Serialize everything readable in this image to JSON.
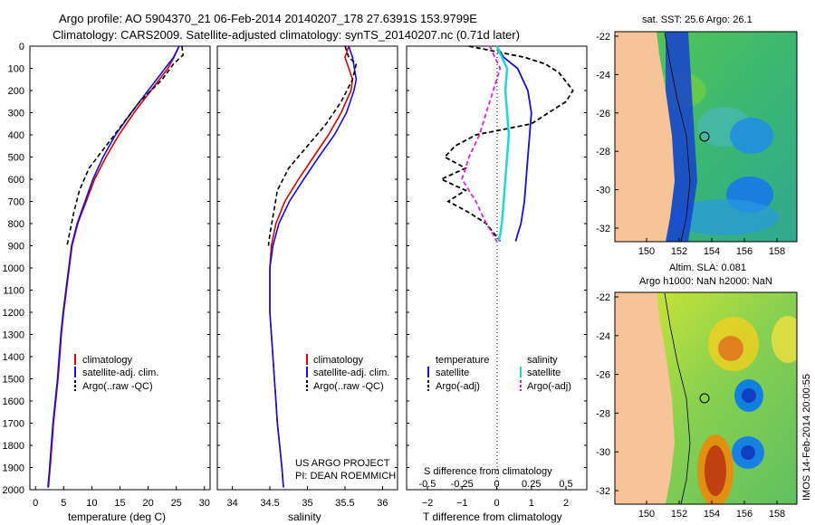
{
  "header": {
    "title_line1": "Argo profile: AO 5904370_21 06-Feb-2014 20140207_178 27.6391S 153.9799E",
    "title_line2": "Climatology: CARS2009. Satellite-adjusted climatology: synTS_20140207.nc (0.71d later)"
  },
  "credits": {
    "line1": "US ARGO PROJECT",
    "line2": "PI: DEAN ROEMMICH"
  },
  "footer_stamp": "IMOS 14-Feb-2014 20:00:55",
  "colors": {
    "climatology": "#e00000",
    "satellite": "#1010e0",
    "argo": "#000000",
    "sat_salinity": "#20d8d8",
    "argo_adj_salinity": "#e020e0",
    "land": "#f7c49a"
  },
  "chart_data": [
    {
      "id": "temperature",
      "type": "line",
      "xlabel": "temperature (deg C)",
      "xlim": [
        -1,
        31
      ],
      "xticks": [
        0,
        5,
        10,
        15,
        20,
        25,
        30
      ],
      "ylim": [
        2000,
        0
      ],
      "yticks": [
        0,
        100,
        200,
        300,
        400,
        500,
        600,
        700,
        800,
        900,
        1000,
        1100,
        1200,
        1300,
        1400,
        1500,
        1600,
        1700,
        1800,
        1900,
        2000
      ],
      "legend": [
        "climatology",
        "satellite-adj. clim.",
        "Argo(..raw -QC)"
      ],
      "series": [
        {
          "name": "climatology",
          "x": [
            25.5,
            24.6,
            23.5,
            20.5,
            17.5,
            14.8,
            12.5,
            10.5,
            9.0,
            7.5,
            6.5,
            6.0,
            5.5,
            5.0,
            4.6,
            4.3,
            4.0,
            3.6,
            3.2,
            2.9,
            2.6,
            2.3
          ],
          "y": [
            0,
            50,
            100,
            200,
            300,
            400,
            500,
            600,
            700,
            800,
            900,
            1000,
            1100,
            1200,
            1300,
            1400,
            1500,
            1600,
            1700,
            1800,
            1900,
            1990
          ]
        },
        {
          "name": "satellite-adj. clim.",
          "x": [
            25.5,
            24.5,
            23.0,
            20.0,
            17.0,
            14.2,
            12.0,
            10.2,
            8.8,
            7.4,
            6.4,
            5.9,
            5.4,
            4.9,
            4.5,
            4.2,
            3.9,
            3.5,
            3.1,
            2.8,
            2.5,
            2.2
          ],
          "y": [
            0,
            50,
            100,
            200,
            300,
            400,
            500,
            600,
            700,
            800,
            900,
            1000,
            1100,
            1200,
            1300,
            1400,
            1500,
            1600,
            1700,
            1800,
            1900,
            1990
          ]
        },
        {
          "name": "Argo(..raw -QC)",
          "x": [
            26.0,
            26.2,
            24.5,
            22.5,
            18.5,
            15.5,
            12.5,
            9.5,
            7.8,
            6.8,
            6.0,
            5.6
          ],
          "y": [
            0,
            40,
            80,
            150,
            250,
            350,
            450,
            550,
            650,
            750,
            850,
            900
          ]
        }
      ]
    },
    {
      "id": "salinity",
      "type": "line",
      "xlabel": "salinity",
      "xlim": [
        33.8,
        36.2
      ],
      "xticks": [
        34,
        34.5,
        35,
        35.5,
        36
      ],
      "ylim": [
        2000,
        0
      ],
      "legend": [
        "climatology",
        "satellite-adj. clim.",
        "Argo(..raw -QC)"
      ],
      "series": [
        {
          "name": "climatology",
          "x": [
            35.55,
            35.5,
            35.6,
            35.58,
            35.45,
            35.28,
            35.08,
            34.88,
            34.7,
            34.58,
            34.52,
            34.5,
            34.5,
            34.52,
            34.54,
            34.56,
            34.58,
            34.6,
            34.63,
            34.66,
            34.68
          ],
          "y": [
            0,
            50,
            150,
            200,
            300,
            400,
            500,
            600,
            700,
            800,
            900,
            1000,
            1200,
            1300,
            1400,
            1500,
            1600,
            1700,
            1800,
            1900,
            1990
          ]
        },
        {
          "name": "satellite-adj. clim.",
          "x": [
            35.55,
            35.6,
            35.65,
            35.62,
            35.52,
            35.36,
            35.15,
            34.95,
            34.76,
            34.62,
            34.54,
            34.5,
            34.5,
            34.52,
            34.54,
            34.56,
            34.58,
            34.6,
            34.63,
            34.66,
            34.68
          ],
          "y": [
            0,
            50,
            150,
            200,
            300,
            400,
            500,
            600,
            700,
            800,
            900,
            1000,
            1200,
            1300,
            1400,
            1500,
            1600,
            1700,
            1800,
            1900,
            1990
          ]
        },
        {
          "name": "Argo(..raw -QC)",
          "x": [
            35.5,
            35.55,
            35.65,
            35.6,
            35.45,
            35.25,
            35.0,
            34.75,
            34.6,
            34.55,
            34.5,
            34.48
          ],
          "y": [
            0,
            50,
            80,
            150,
            250,
            350,
            450,
            550,
            650,
            750,
            850,
            900
          ]
        }
      ]
    },
    {
      "id": "difference",
      "type": "line",
      "xlabel_bottom": "T difference from climatology",
      "xticks_bottom": [
        -2,
        -1,
        0,
        1,
        2
      ],
      "xlabel_top": "S difference from climatology",
      "xticks_top": [
        "-0.5",
        "-0.25",
        "0",
        "0.25",
        "0.5"
      ],
      "xlim": [
        -2.6,
        2.6
      ],
      "ylim": [
        2000,
        0
      ],
      "legend_titles": [
        "temperature",
        "salinity"
      ],
      "legend": [
        "satellite",
        "Argo(-adj)",
        "satellite",
        "Argo(-adj)"
      ],
      "series": [
        {
          "name": "temperature satellite",
          "x": [
            0,
            0.2,
            0.6,
            0.9,
            1.0,
            0.95,
            0.9,
            0.85,
            0.8,
            0.7,
            0.6,
            0.55
          ],
          "y": [
            0,
            50,
            100,
            200,
            300,
            400,
            500,
            600,
            700,
            800,
            850,
            880
          ]
        },
        {
          "name": "temperature Argo(-adj)",
          "x": [
            -0.8,
            0.8,
            1.4,
            1.8,
            2.2,
            2.0,
            1.5,
            1.0,
            -0.6,
            -1.2,
            -1.5,
            -0.9,
            -1.6,
            -0.9,
            -1.4,
            -0.8,
            -0.3,
            0.1
          ],
          "y": [
            0,
            50,
            80,
            120,
            200,
            250,
            300,
            350,
            400,
            450,
            500,
            550,
            600,
            650,
            700,
            750,
            800,
            880
          ]
        },
        {
          "name": "salinity satellite",
          "x": [
            0.0,
            0.15,
            0.3,
            0.25,
            0.3,
            0.35,
            0.3,
            0.25,
            0.2,
            0.15,
            0.1,
            0.05
          ],
          "y": [
            0,
            50,
            100,
            200,
            300,
            400,
            500,
            600,
            700,
            800,
            850,
            880
          ]
        },
        {
          "name": "salinity Argo(-adj)",
          "x": [
            -0.2,
            -0.05,
            0.1,
            -0.1,
            -0.3,
            -0.5,
            -0.8,
            -1.0,
            -0.6,
            -0.3,
            -0.1,
            0.0
          ],
          "y": [
            0,
            50,
            100,
            200,
            300,
            400,
            500,
            600,
            700,
            800,
            850,
            880
          ]
        }
      ]
    }
  ],
  "maps": [
    {
      "id": "sst",
      "title_lines": [
        "sat. SST: 25.6 Argo: 26.1"
      ],
      "lat_ticks": [
        "-22",
        "-24",
        "-26",
        "-28",
        "-30",
        "-32"
      ],
      "lon_ticks": [
        "150",
        "152",
        "154",
        "156",
        "158"
      ]
    },
    {
      "id": "sla",
      "title_lines": [
        "Altim. SLA: 0.081",
        "Argo h1000: NaN h2000: NaN"
      ],
      "lat_ticks": [
        "-22",
        "-24",
        "-26",
        "-28",
        "-30",
        "-32"
      ],
      "lon_ticks": [
        "150",
        "152",
        "154",
        "156",
        "158"
      ]
    }
  ]
}
